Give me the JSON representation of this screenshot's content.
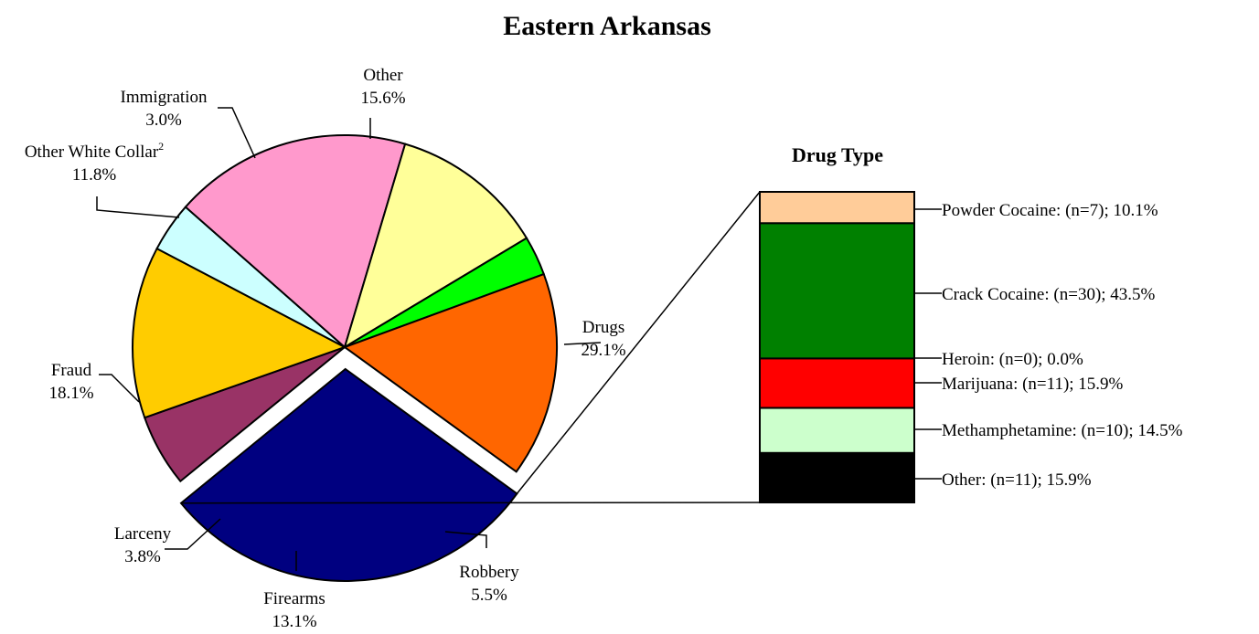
{
  "chart_data": [
    {
      "type": "pie",
      "title": "Eastern Arkansas",
      "categories": [
        "Drugs",
        "Robbery",
        "Firearms",
        "Larceny",
        "Fraud",
        "Other White Collar",
        "Immigration",
        "Other"
      ],
      "values": [
        29.1,
        5.5,
        13.1,
        3.8,
        18.1,
        11.8,
        3.0,
        15.6
      ],
      "value_labels": [
        "29.1%",
        "5.5%",
        "13.1%",
        "3.8%",
        "18.1%",
        "11.8%",
        "3.0%",
        "15.6%"
      ],
      "label_superscripts": [
        "",
        "",
        "",
        "",
        "",
        "2",
        "",
        ""
      ],
      "colors": [
        "#000080",
        "#993366",
        "#ffcc00",
        "#ccffff",
        "#ff99cc",
        "#ffff99",
        "#00ff00",
        "#ff6600"
      ],
      "exploded": "Drugs"
    },
    {
      "type": "bar",
      "stacked": true,
      "title": "Drug Type",
      "categories": [
        "Powder Cocaine",
        "Crack Cocaine",
        "Heroin",
        "Marijuana",
        "Methamphetamine",
        "Other"
      ],
      "counts": [
        7,
        30,
        0,
        11,
        10,
        11
      ],
      "values": [
        10.1,
        43.5,
        0.0,
        15.9,
        14.5,
        15.9
      ],
      "labels": [
        "Powder Cocaine: (n=7); 10.1%",
        "Crack Cocaine: (n=30); 43.5%",
        "Heroin: (n=0); 0.0%",
        "Marijuana: (n=11); 15.9%",
        "Methamphetamine: (n=10); 14.5%",
        "Other: (n=11); 15.9%"
      ],
      "colors": [
        "#ffcc99",
        "#008000",
        "#ff0000",
        "#ff0000",
        "#ccffcc",
        "#000000"
      ]
    }
  ]
}
